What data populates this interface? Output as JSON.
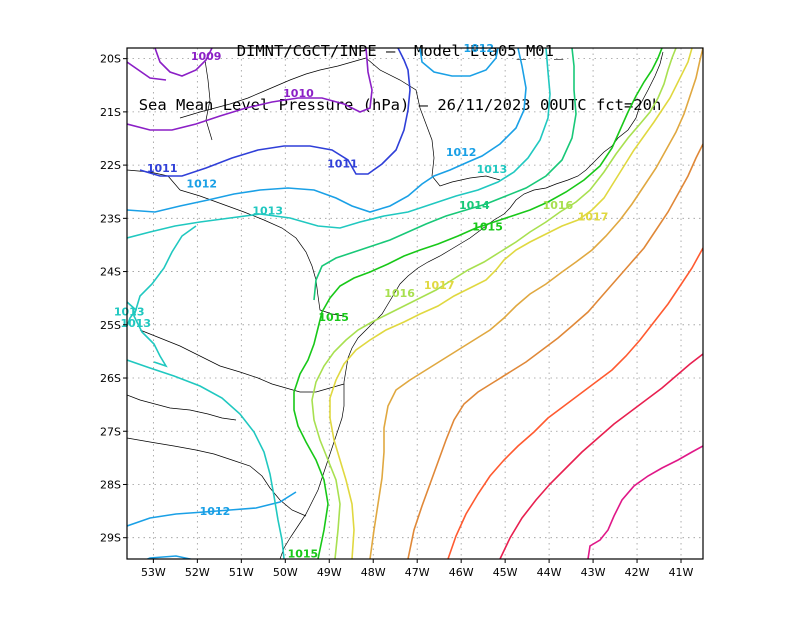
{
  "title": {
    "line1": "DIMNT/CGCT/INPE –  Model Eta05_M01_",
    "line2": "Sea Mean Level Pressure (hPa) – 26/11/2023 00UTC fct=20h"
  },
  "axes": {
    "lon_labels": [
      "53W",
      "52W",
      "51W",
      "50W",
      "49W",
      "48W",
      "47W",
      "46W",
      "45W",
      "44W",
      "43W",
      "42W",
      "41W"
    ],
    "lat_labels": [
      "20S",
      "21S",
      "22S",
      "23S",
      "24S",
      "25S",
      "26S",
      "27S",
      "28S",
      "29S"
    ],
    "lon_range": [
      -53.6,
      -40.5
    ],
    "lat_range": [
      -29.4,
      -19.8
    ],
    "grid": true
  },
  "colors": {
    "1009": "#8b1fc6",
    "1010": "#8b1fc6",
    "1011": "#2f3fd8",
    "1012": "#1aa0e6",
    "1013": "#20c8c0",
    "1014": "#18c878",
    "1015": "#18c818",
    "1016": "#a8e050",
    "1017": "#e0d840",
    "1018": "#e0a840",
    "1019": "#e08838",
    "1020": "#ff5a30",
    "1021": "#e82050",
    "1022": "#e01888"
  },
  "isobar_labels": [
    {
      "text": "1009",
      "lon": -51.8,
      "lat": -19.95,
      "level": "1009"
    },
    {
      "text": "1010",
      "lon": -49.7,
      "lat": -20.65,
      "level": "1010"
    },
    {
      "text": "1011",
      "lon": -52.8,
      "lat": -22.05,
      "level": "1011"
    },
    {
      "text": "1011",
      "lon": -48.7,
      "lat": -21.97,
      "level": "1011"
    },
    {
      "text": "1012",
      "lon": -51.9,
      "lat": -22.35,
      "level": "1012"
    },
    {
      "text": "1012",
      "lon": -45.6,
      "lat": -19.8,
      "level": "1012"
    },
    {
      "text": "1012",
      "lon": -46.0,
      "lat": -21.75,
      "level": "1012"
    },
    {
      "text": "1012",
      "lon": -51.6,
      "lat": -28.5,
      "level": "1012"
    },
    {
      "text": "1013",
      "lon": -50.4,
      "lat": -22.85,
      "level": "1013"
    },
    {
      "text": "1013",
      "lon": -45.3,
      "lat": -22.07,
      "level": "1013"
    },
    {
      "text": "1013",
      "lon": -53.55,
      "lat": -24.75,
      "level": "1013"
    },
    {
      "text": "1013",
      "lon": -53.4,
      "lat": -24.97,
      "level": "1013"
    },
    {
      "text": "1014",
      "lon": -45.7,
      "lat": -22.75,
      "level": "1014"
    },
    {
      "text": "1015",
      "lon": -45.4,
      "lat": -23.15,
      "level": "1015"
    },
    {
      "text": "1015",
      "lon": -48.9,
      "lat": -24.85,
      "level": "1015"
    },
    {
      "text": "1015",
      "lon": -49.6,
      "lat": -29.3,
      "level": "1015"
    },
    {
      "text": "1016",
      "lon": -43.8,
      "lat": -22.75,
      "level": "1016"
    },
    {
      "text": "1016",
      "lon": -47.4,
      "lat": -24.4,
      "level": "1016"
    },
    {
      "text": "1017",
      "lon": -43.0,
      "lat": -22.97,
      "level": "1017"
    },
    {
      "text": "1017",
      "lon": -46.5,
      "lat": -24.25,
      "level": "1017"
    }
  ]
}
